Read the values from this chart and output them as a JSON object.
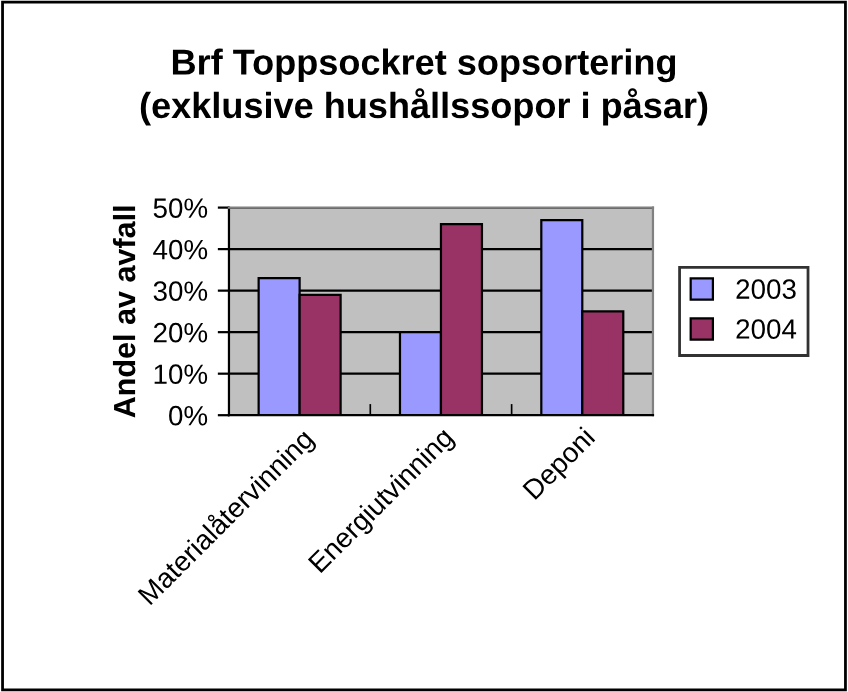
{
  "chart_data": {
    "type": "bar",
    "title": "Brf Toppsockret sopsortering\n(exklusive hushållssopor i påsar)",
    "ylabel": "Andel av avfall",
    "categories": [
      "Materialåtervinning",
      "Energiutvinning",
      "Deponi"
    ],
    "series": [
      {
        "name": "2003",
        "color": "#9999ff",
        "values": [
          33,
          20,
          47
        ]
      },
      {
        "name": "2004",
        "color": "#993366",
        "values": [
          29,
          46,
          25
        ]
      }
    ],
    "ylim": [
      0,
      50
    ],
    "yticks": [
      {
        "value": 0,
        "label": "0%"
      },
      {
        "value": 10,
        "label": "10%"
      },
      {
        "value": 20,
        "label": "20%"
      },
      {
        "value": 30,
        "label": "30%"
      },
      {
        "value": 40,
        "label": "40%"
      },
      {
        "value": 50,
        "label": "50%"
      }
    ],
    "grid": "y",
    "legend": "right"
  }
}
